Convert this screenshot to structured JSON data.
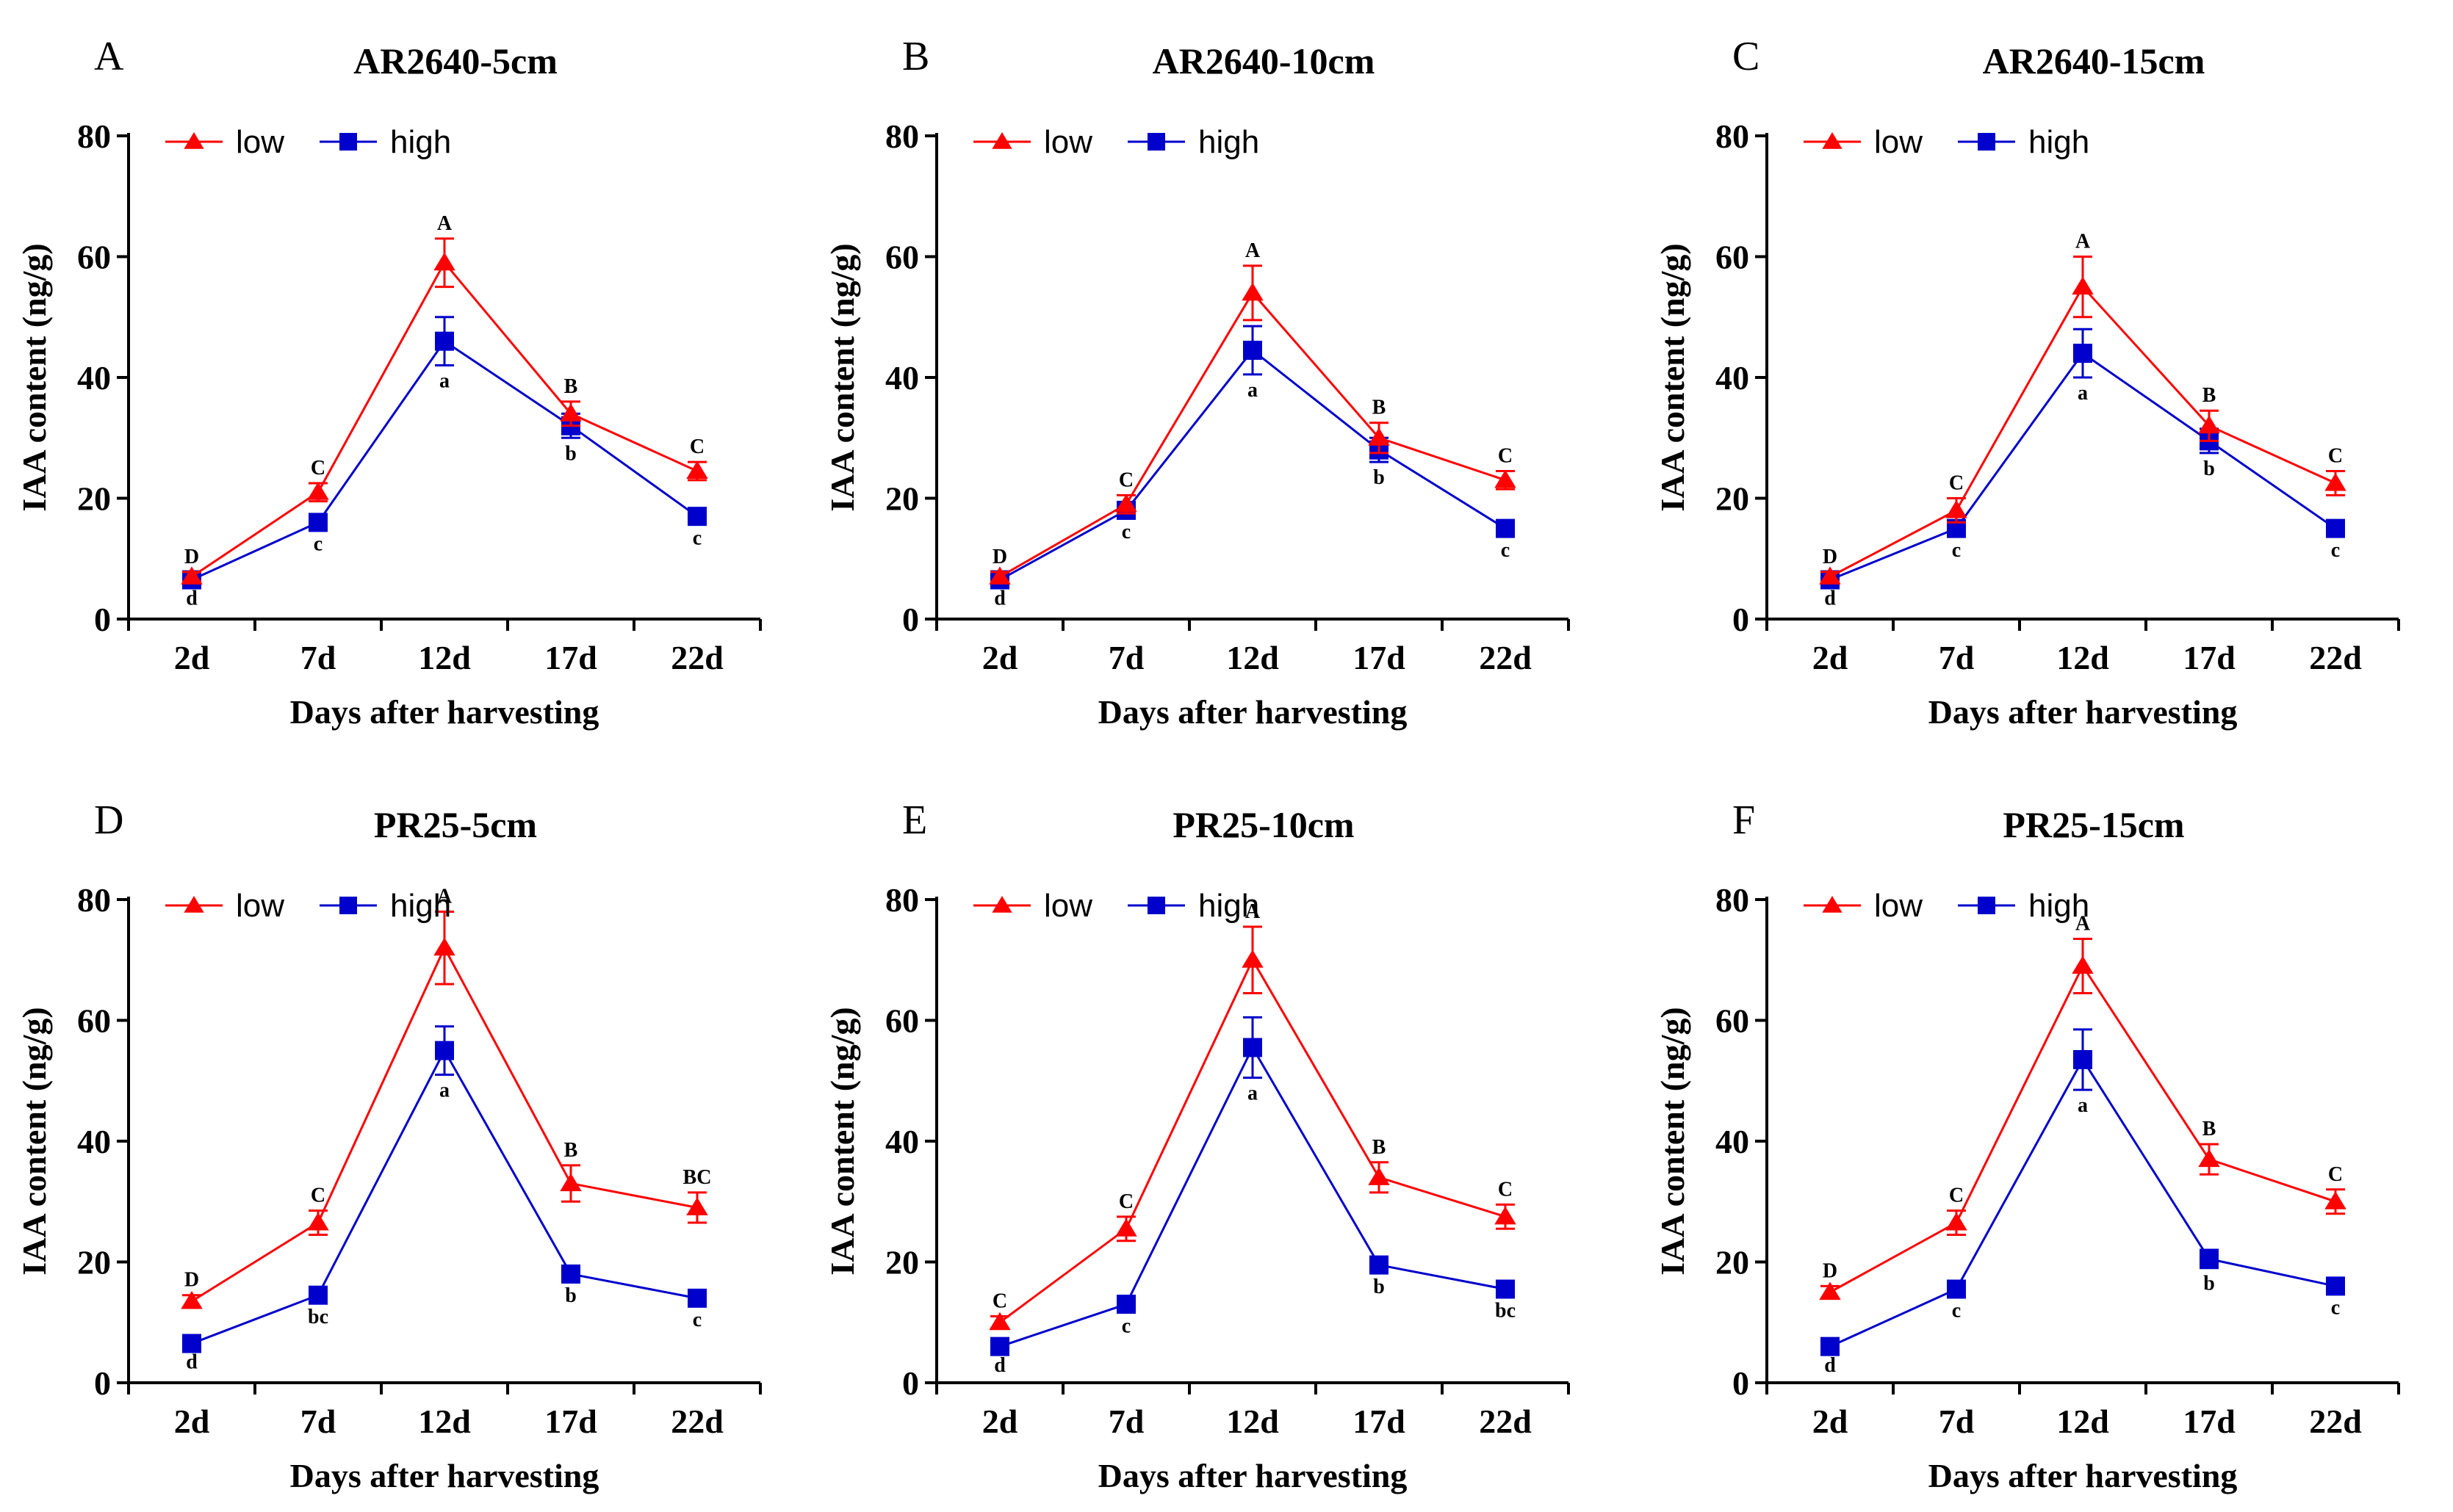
{
  "colors": {
    "low": "#ff0000",
    "high": "#0000cc",
    "axis": "#000000"
  },
  "chart_data": [
    {
      "type": "line",
      "letter": "A",
      "title": "AR2640-5cm",
      "categories": [
        "2d",
        "7d",
        "12d",
        "17d",
        "22d"
      ],
      "xlabel": "Days after harvesting",
      "ylabel": "IAA content (ng/g)",
      "ylim": [
        0,
        80
      ],
      "yticks": [
        0,
        20,
        40,
        60,
        80
      ],
      "legend_position": "top-left",
      "series": [
        {
          "name": "low",
          "marker": "triangle",
          "values": [
            7,
            21,
            59,
            34,
            24.5
          ],
          "errors": [
            0.8,
            1.5,
            4,
            2,
            1.5
          ],
          "labels": [
            "D",
            "C",
            "A",
            "B",
            "C"
          ]
        },
        {
          "name": "high",
          "marker": "square",
          "values": [
            6.5,
            16,
            46,
            32,
            17
          ],
          "errors": [
            0.5,
            1,
            4,
            2,
            1
          ],
          "labels": [
            "d",
            "c",
            "a",
            "b",
            "c"
          ]
        }
      ]
    },
    {
      "type": "line",
      "letter": "B",
      "title": "AR2640-10cm",
      "categories": [
        "2d",
        "7d",
        "12d",
        "17d",
        "22d"
      ],
      "xlabel": "Days after harvesting",
      "ylabel": "IAA content (ng/g)",
      "ylim": [
        0,
        80
      ],
      "yticks": [
        0,
        20,
        40,
        60,
        80
      ],
      "legend_position": "top-left",
      "series": [
        {
          "name": "low",
          "marker": "triangle",
          "values": [
            7,
            19,
            54,
            30,
            23
          ],
          "errors": [
            0.8,
            1.5,
            4.5,
            2.5,
            1.5
          ],
          "labels": [
            "D",
            "C",
            "A",
            "B",
            "C"
          ]
        },
        {
          "name": "high",
          "marker": "square",
          "values": [
            6.5,
            18,
            44.5,
            28,
            15
          ],
          "errors": [
            0.5,
            1,
            4,
            2,
            1
          ],
          "labels": [
            "d",
            "c",
            "a",
            "b",
            "c"
          ]
        }
      ]
    },
    {
      "type": "line",
      "letter": "C",
      "title": "AR2640-15cm",
      "categories": [
        "2d",
        "7d",
        "12d",
        "17d",
        "22d"
      ],
      "xlabel": "Days after harvesting",
      "ylabel": "IAA content (ng/g)",
      "ylim": [
        0,
        80
      ],
      "yticks": [
        0,
        20,
        40,
        60,
        80
      ],
      "legend_position": "top-left",
      "series": [
        {
          "name": "low",
          "marker": "triangle",
          "values": [
            7,
            18,
            55,
            32,
            22.5
          ],
          "errors": [
            0.8,
            2,
            5,
            2.5,
            2
          ],
          "labels": [
            "D",
            "C",
            "A",
            "B",
            "C"
          ]
        },
        {
          "name": "high",
          "marker": "square",
          "values": [
            6.5,
            15,
            44,
            29.5,
            15
          ],
          "errors": [
            0.5,
            1,
            4,
            2,
            1
          ],
          "labels": [
            "d",
            "c",
            "a",
            "b",
            "c"
          ]
        }
      ]
    },
    {
      "type": "line",
      "letter": "D",
      "title": "PR25-5cm",
      "categories": [
        "2d",
        "7d",
        "12d",
        "17d",
        "22d"
      ],
      "xlabel": "Days after harvesting",
      "ylabel": "IAA content (ng/g)",
      "ylim": [
        0,
        80
      ],
      "yticks": [
        0,
        20,
        40,
        60,
        80
      ],
      "legend_position": "top-left",
      "series": [
        {
          "name": "low",
          "marker": "triangle",
          "values": [
            13.5,
            26.5,
            72,
            33,
            29
          ],
          "errors": [
            1,
            2,
            6,
            3,
            2.5
          ],
          "labels": [
            "D",
            "C",
            "A",
            "B",
            "BC"
          ]
        },
        {
          "name": "high",
          "marker": "square",
          "values": [
            6.5,
            14.5,
            55,
            18,
            14
          ],
          "errors": [
            0.5,
            1,
            4,
            1,
            1
          ],
          "labels": [
            "d",
            "bc",
            "a",
            "b",
            "c"
          ]
        }
      ]
    },
    {
      "type": "line",
      "letter": "E",
      "title": "PR25-10cm",
      "categories": [
        "2d",
        "7d",
        "12d",
        "17d",
        "22d"
      ],
      "xlabel": "Days after harvesting",
      "ylabel": "IAA content (ng/g)",
      "ylim": [
        0,
        80
      ],
      "yticks": [
        0,
        20,
        40,
        60,
        80
      ],
      "legend_position": "top-left",
      "series": [
        {
          "name": "low",
          "marker": "triangle",
          "values": [
            10,
            25.5,
            70,
            34,
            27.5
          ],
          "errors": [
            1,
            2,
            5.5,
            2.5,
            2
          ],
          "labels": [
            "C",
            "C",
            "A",
            "B",
            "C"
          ]
        },
        {
          "name": "high",
          "marker": "square",
          "values": [
            6,
            13,
            55.5,
            19.5,
            15.5
          ],
          "errors": [
            0.5,
            1,
            5,
            1,
            1
          ],
          "labels": [
            "d",
            "c",
            "a",
            "b",
            "bc"
          ]
        }
      ]
    },
    {
      "type": "line",
      "letter": "F",
      "title": "PR25-15cm",
      "categories": [
        "2d",
        "7d",
        "12d",
        "17d",
        "22d"
      ],
      "xlabel": "Days after harvesting",
      "ylabel": "IAA content (ng/g)",
      "ylim": [
        0,
        80
      ],
      "yticks": [
        0,
        20,
        40,
        60,
        80
      ],
      "legend_position": "top-left",
      "series": [
        {
          "name": "low",
          "marker": "triangle",
          "values": [
            15,
            26.5,
            69,
            37,
            30
          ],
          "errors": [
            1,
            2,
            4.5,
            2.5,
            2
          ],
          "labels": [
            "D",
            "C",
            "A",
            "B",
            "C"
          ]
        },
        {
          "name": "high",
          "marker": "square",
          "values": [
            6,
            15.5,
            53.5,
            20.5,
            16
          ],
          "errors": [
            0.5,
            1,
            5,
            1.5,
            1
          ],
          "labels": [
            "d",
            "c",
            "a",
            "b",
            "c"
          ]
        }
      ]
    }
  ]
}
